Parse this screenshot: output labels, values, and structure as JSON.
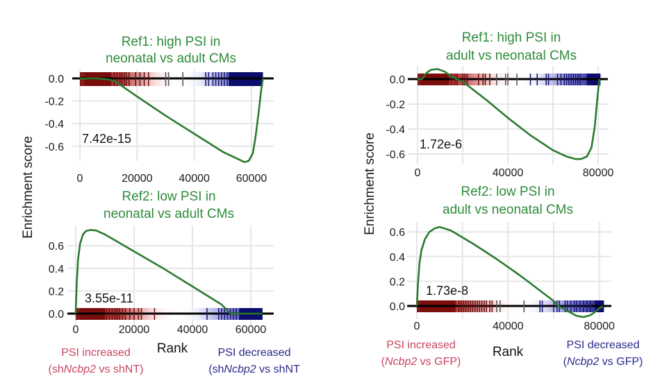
{
  "figure": {
    "y_axis_label_left": "Enrichment score",
    "y_axis_label_right": "Enrichment score",
    "x_axis_label_left": "Rank",
    "x_axis_label_right": "Rank",
    "left_footer": {
      "increased_line1": "PSI increased",
      "increased_line2_pre": "(sh",
      "increased_line2_gene": "Ncbp2",
      "increased_line2_post": " vs shNT)",
      "decreased_line1": "PSI decreased",
      "decreased_line2_pre": "(sh",
      "decreased_line2_gene": "Ncbp2",
      "decreased_line2_post": " vs shNT"
    },
    "right_footer": {
      "increased_line1": "PSI increased",
      "increased_line2_pre": "(",
      "increased_line2_gene": "Ncbp2",
      "increased_line2_post": " vs GFP)",
      "decreased_line1": "PSI decreased",
      "decreased_line2_pre": "(",
      "decreased_line2_gene": "Ncbp2",
      "decreased_line2_post": " vs GFP)"
    },
    "colors": {
      "curve": "#2a7a2e",
      "title": "#2e8b3a",
      "increased": "#c8455f",
      "decreased": "#2a2a8c",
      "barcode_red": "#7a0c0c",
      "barcode_blue": "#0c0c6e"
    }
  },
  "chart_data": [
    {
      "type": "line",
      "title_line1": "Ref1: high PSI in",
      "title_line2": "neonatal vs adult CMs",
      "pvalue": "7.42e-15",
      "xlabel": "Rank",
      "ylabel": "Enrichment score",
      "xlim": [
        0,
        64000
      ],
      "ylim": [
        -0.74,
        0.0
      ],
      "xticks": [
        0,
        20000,
        40000,
        60000
      ],
      "xtick_labels": [
        "0",
        "20000",
        "40000",
        "60000"
      ],
      "yticks": [
        0.0,
        -0.2,
        -0.4,
        -0.6
      ],
      "ytick_labels": [
        "0.0",
        "-0.2",
        "-0.4",
        "-0.6"
      ],
      "grid": true,
      "x": [
        0,
        1000,
        3000,
        6000,
        10000,
        12000,
        20000,
        30000,
        40000,
        50000,
        55000,
        57500,
        59000,
        60500,
        61500,
        62500,
        63500,
        64000
      ],
      "y": [
        0.0,
        -0.005,
        0.0,
        0.0,
        -0.01,
        -0.02,
        -0.16,
        -0.33,
        -0.49,
        -0.65,
        -0.71,
        -0.74,
        -0.73,
        -0.66,
        -0.5,
        -0.3,
        -0.08,
        0.0
      ],
      "barcode_red_dense_end": 11000,
      "barcode_blue_dense_start": 52000,
      "barcode_max": 64000,
      "barcode_ticks": [
        12000,
        13000,
        14000,
        14700,
        15500,
        16200,
        17200,
        19500,
        21000,
        22500,
        24000,
        30000,
        31000,
        36000,
        44000,
        45000,
        46500,
        47500,
        48500,
        49500,
        50500,
        51500
      ]
    },
    {
      "type": "line",
      "title_line1": "Ref2: low PSI in",
      "title_line2": "neonatal vs adult CMs",
      "pvalue": "3.55e-11",
      "xlabel": "Rank",
      "ylabel": "Enrichment score",
      "xlim": [
        0,
        64000
      ],
      "ylim": [
        0.0,
        0.74
      ],
      "xticks": [
        0,
        20000,
        40000,
        60000
      ],
      "xtick_labels": [
        "0",
        "20000",
        "40000",
        "60000"
      ],
      "yticks": [
        0.0,
        0.2,
        0.4,
        0.6
      ],
      "ytick_labels": [
        "0.0",
        "0.2",
        "0.4",
        "0.6"
      ],
      "grid": true,
      "x": [
        0,
        300,
        800,
        1500,
        2500,
        3500,
        5000,
        7000,
        10000,
        20000,
        30000,
        40000,
        50000,
        53000,
        56000,
        60000,
        64000
      ],
      "y": [
        0.0,
        0.25,
        0.48,
        0.62,
        0.7,
        0.73,
        0.74,
        0.735,
        0.7,
        0.55,
        0.4,
        0.24,
        0.08,
        0.0,
        0.0,
        0.0,
        0.0
      ],
      "barcode_red_dense_end": 10000,
      "barcode_blue_dense_start": 56000,
      "barcode_max": 64000,
      "barcode_ticks": [
        10500,
        11500,
        12500,
        13500,
        14200,
        15000,
        16000,
        17000,
        18500,
        20000,
        21500,
        22500,
        27000,
        45000,
        49000,
        50000,
        51000,
        52000,
        53000,
        54000,
        55000
      ]
    },
    {
      "type": "line",
      "title_line1": "Ref1: high PSI in",
      "title_line2": "adult vs neonatal CMs",
      "pvalue": "1.72e-6",
      "xlabel": "Rank",
      "ylabel": "Enrichment score",
      "xlim": [
        0,
        84000
      ],
      "ylim": [
        -0.64,
        0.08
      ],
      "xticks": [
        0,
        40000,
        80000
      ],
      "xtick_labels": [
        "0",
        "40000",
        "80000"
      ],
      "minor_gridlines": [
        20000,
        60000
      ],
      "yticks": [
        0.0,
        -0.2,
        -0.4,
        -0.6
      ],
      "ytick_labels": [
        "0.0",
        "-0.2",
        "-0.4",
        "-0.6"
      ],
      "grid": true,
      "x": [
        0,
        2000,
        4000,
        6000,
        9000,
        12000,
        15000,
        20000,
        30000,
        40000,
        50000,
        60000,
        66000,
        70000,
        72500,
        75000,
        77000,
        78500,
        79500,
        80500
      ],
      "y": [
        0.0,
        0.0,
        0.05,
        0.075,
        0.08,
        0.06,
        0.02,
        -0.02,
        -0.16,
        -0.31,
        -0.45,
        -0.57,
        -0.62,
        -0.64,
        -0.64,
        -0.62,
        -0.55,
        -0.38,
        -0.18,
        0.0
      ],
      "barcode_red_dense_end": 14000,
      "barcode_blue_dense_start": 75000,
      "barcode_max": 81000,
      "barcode_ticks": [
        15000,
        16500,
        17500,
        20000,
        21000,
        22000,
        27000,
        29000,
        30000,
        32000,
        35000,
        39000,
        40000,
        44000,
        50000,
        53000,
        57000,
        58000,
        62000,
        63500,
        65000,
        66000,
        67000,
        68000,
        69000,
        70000,
        71000,
        72000
      ]
    },
    {
      "type": "line",
      "title_line1": "Ref2: low PSI in",
      "title_line2": "adult vs neonatal CMs",
      "pvalue": "1.73e-8",
      "xlabel": "Rank",
      "ylabel": "Enrichment score",
      "xlim": [
        0,
        84000
      ],
      "ylim": [
        -0.09,
        0.64
      ],
      "xticks": [
        0,
        40000,
        80000
      ],
      "xtick_labels": [
        "0",
        "40000",
        "80000"
      ],
      "minor_gridlines": [
        20000,
        60000
      ],
      "yticks": [
        0.0,
        0.2,
        0.4,
        0.6
      ],
      "ytick_labels": [
        "0.0",
        "0.2",
        "0.4",
        "0.6"
      ],
      "grid": true,
      "x": [
        0,
        500,
        1200,
        2000,
        3500,
        5500,
        8000,
        10000,
        15000,
        25000,
        35000,
        45000,
        55000,
        60000,
        62000,
        66000,
        70000,
        73000,
        76000,
        78000,
        80000,
        81500
      ],
      "y": [
        0.0,
        0.18,
        0.35,
        0.45,
        0.54,
        0.6,
        0.63,
        0.64,
        0.61,
        0.5,
        0.38,
        0.25,
        0.11,
        0.04,
        0.0,
        -0.04,
        -0.08,
        -0.09,
        -0.075,
        -0.05,
        -0.02,
        0.0
      ],
      "barcode_red_dense_end": 17000,
      "barcode_blue_dense_start": 78000,
      "barcode_max": 82000,
      "barcode_ticks": [
        18500,
        19500,
        20500,
        21500,
        22500,
        23500,
        24500,
        25500,
        26500,
        27500,
        28500,
        29500,
        30500,
        32000,
        33000,
        35000,
        36500,
        47000,
        54000,
        55000,
        60000,
        61500,
        62500,
        65000,
        66000,
        67500,
        69000,
        70000,
        71500,
        73000,
        74500,
        76000
      ]
    }
  ]
}
